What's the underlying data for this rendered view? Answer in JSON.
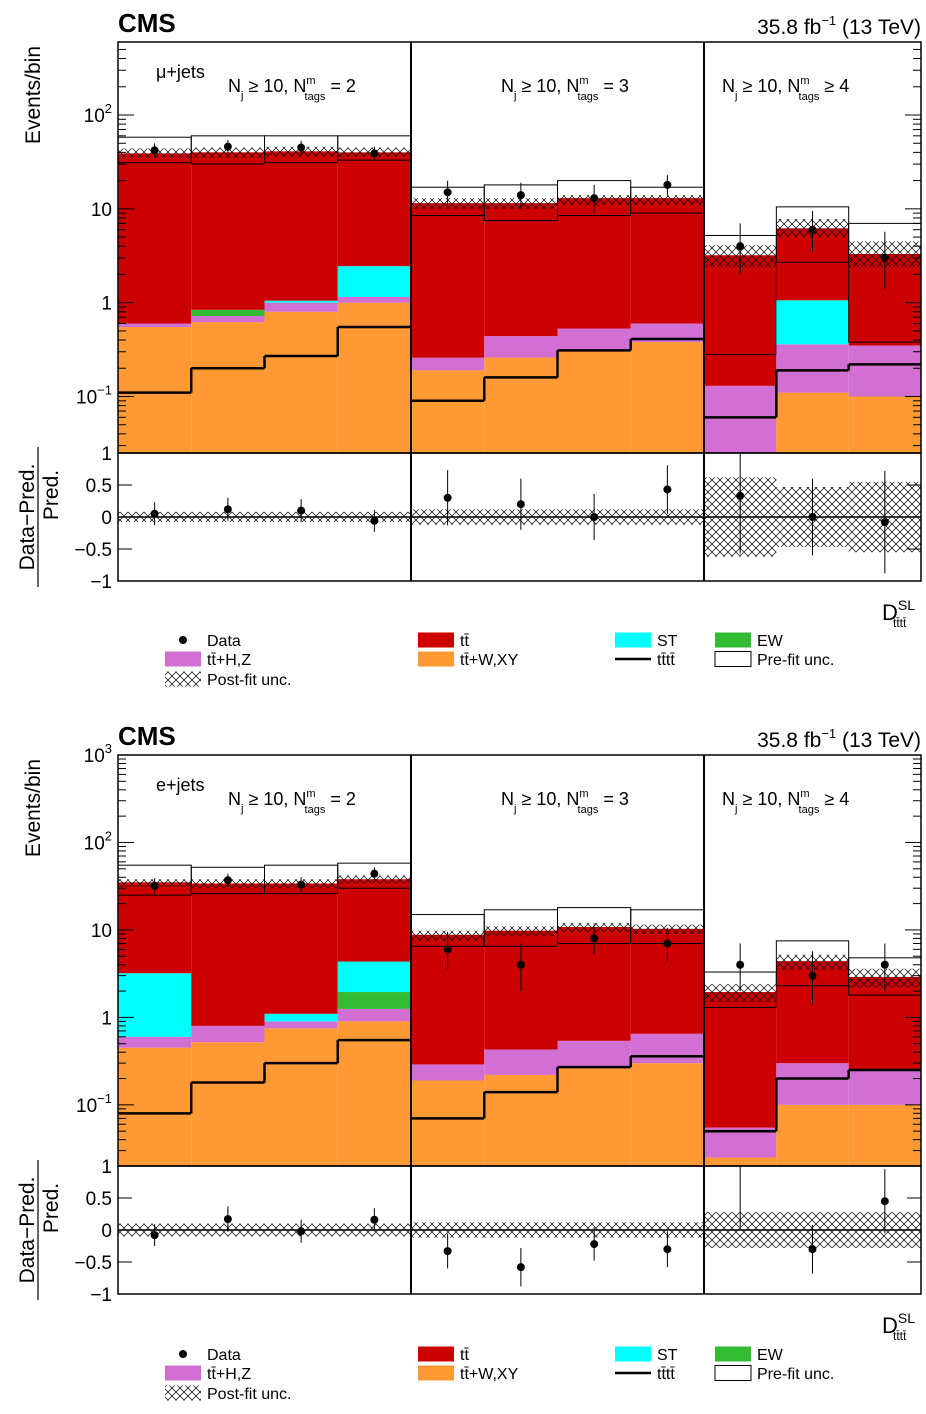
{
  "colors": {
    "tt": "#cc0000",
    "ttHZ": "#d26fd2",
    "ttWXY": "#ff9933",
    "ST": "#00ffff",
    "EW": "#33bb33",
    "tttt": "#000000",
    "data": "#000000"
  },
  "legend": [
    {
      "key": "data",
      "label": "Data"
    },
    {
      "key": "tt",
      "label": "tt̄"
    },
    {
      "key": "ST",
      "label": "ST"
    },
    {
      "key": "EW",
      "label": "EW"
    },
    {
      "key": "ttHZ",
      "label": "tt̄+H,Z"
    },
    {
      "key": "ttWXY",
      "label": "tt̄+W,XY"
    },
    {
      "key": "tttt",
      "label": "tt̄tt̄"
    },
    {
      "key": "prefit",
      "label": "Pre-fit unc."
    },
    {
      "key": "postfit",
      "label": "Post-fit unc."
    }
  ],
  "chart_data": [
    {
      "type": "histogram-stack",
      "experiment": "CMS",
      "lumi_main": "35.8 fb",
      "lumi_exp": "−1",
      "lumi_tail": " (13 TeV)",
      "channel": "μ+jets",
      "ylabel": "Events/bin",
      "ratio_ylabel_top": "Data−Pred.",
      "ratio_ylabel_bottom": "Pred.",
      "xlabel_main": "D",
      "xlabel_sup": "SL",
      "xlabel_sub": "tt̄tt̄",
      "y_scale": "log",
      "ylim": [
        0.025,
        600
      ],
      "y_ticks": [
        {
          "v": 0.1,
          "b": "10",
          "e": "−1"
        },
        {
          "v": 1,
          "b": "1",
          "e": ""
        },
        {
          "v": 10,
          "b": "10",
          "e": ""
        },
        {
          "v": 100,
          "b": "10",
          "e": "2"
        }
      ],
      "ratio_ylim": [
        -1,
        1
      ],
      "ratio_ticks": [
        "1",
        "0.5",
        "0",
        "−0.5",
        "−1"
      ],
      "regions": [
        {
          "label_main": "N",
          "label_sub": "j",
          "label_mid": " ≥ 10, N",
          "label_sup": "m",
          "label_sub2": "tags",
          "label_end": " = 2",
          "bins": [
            {
              "ttWXY": 0.55,
              "ttHZ": 0.05,
              "EW": 0,
              "ST": 0,
              "tt": 38,
              "total": 39,
              "tttt": 0.11,
              "prefit": [
                31,
                58
              ],
              "postfit": [
                35,
                44
              ],
              "data": 42,
              "err": [
                7,
                8
              ],
              "ratio": 0.05,
              "ratio_err": [
                0.18,
                0.18
              ],
              "ratio_unc": 0.08
            },
            {
              "ttWXY": 0.62,
              "ttHZ": 0.1,
              "EW": 0.12,
              "ST": 0,
              "tt": 39,
              "total": 40,
              "tttt": 0.2,
              "prefit": [
                30,
                60
              ],
              "postfit": [
                35,
                45
              ],
              "data": 46,
              "err": [
                7,
                8
              ],
              "ratio": 0.12,
              "ratio_err": [
                0.18,
                0.18
              ],
              "ratio_unc": 0.08
            },
            {
              "ttWXY": 0.8,
              "ttHZ": 0.2,
              "EW": 0,
              "ST": 0.05,
              "tt": 40,
              "total": 41,
              "tttt": 0.27,
              "prefit": [
                31,
                60
              ],
              "postfit": [
                36,
                46
              ],
              "data": 45,
              "err": [
                7,
                8
              ],
              "ratio": 0.1,
              "ratio_err": [
                0.18,
                0.18
              ],
              "ratio_unc": 0.08
            },
            {
              "ttWXY": 1.0,
              "ttHZ": 0.15,
              "EW": 0,
              "ST": 1.3,
              "tt": 38,
              "total": 40,
              "tttt": 0.55,
              "prefit": [
                33,
                60
              ],
              "postfit": [
                36,
                45
              ],
              "data": 39,
              "err": [
                6,
                7
              ],
              "ratio": -0.06,
              "ratio_err": [
                0.17,
                0.17
              ],
              "ratio_unc": 0.08
            }
          ]
        },
        {
          "label_main": "N",
          "label_sub": "j",
          "label_mid": " ≥ 10, N",
          "label_sup": "m",
          "label_sub2": "tags",
          "label_end": " = 3",
          "bins": [
            {
              "ttWXY": 0.19,
              "ttHZ": 0.07,
              "EW": 0,
              "ST": 0,
              "tt": 11,
              "total": 11.5,
              "tttt": 0.09,
              "prefit": [
                8.5,
                17
              ],
              "postfit": [
                10,
                13
              ],
              "data": 15,
              "err": [
                4,
                5
              ],
              "ratio": 0.3,
              "ratio_err": [
                0.43,
                0.43
              ],
              "ratio_unc": 0.12
            },
            {
              "ttWXY": 0.26,
              "ttHZ": 0.18,
              "EW": 0,
              "ST": 0,
              "tt": 11,
              "total": 11.5,
              "tttt": 0.16,
              "prefit": [
                7.5,
                18
              ],
              "postfit": [
                10,
                13
              ],
              "data": 14,
              "err": [
                4,
                5
              ],
              "ratio": 0.2,
              "ratio_err": [
                0.4,
                0.4
              ],
              "ratio_unc": 0.12
            },
            {
              "ttWXY": 0.31,
              "ttHZ": 0.22,
              "EW": 0,
              "ST": 0,
              "tt": 12.5,
              "total": 13,
              "tttt": 0.31,
              "prefit": [
                8.5,
                20
              ],
              "postfit": [
                11,
                14
              ],
              "data": 13,
              "err": [
                4,
                5
              ],
              "ratio": 0,
              "ratio_err": [
                0.36,
                0.36
              ],
              "ratio_unc": 0.12
            },
            {
              "ttWXY": 0.38,
              "ttHZ": 0.22,
              "EW": 0,
              "ST": 0,
              "tt": 12.5,
              "total": 13,
              "tttt": 0.41,
              "prefit": [
                9,
                17
              ],
              "postfit": [
                11,
                14
              ],
              "data": 18,
              "err": [
                4,
                5
              ],
              "ratio": 0.43,
              "ratio_err": [
                0.38,
                0.38
              ],
              "ratio_unc": 0.12
            }
          ]
        },
        {
          "label_main": "N",
          "label_sub": "j",
          "label_mid": " ≥ 10, N",
          "label_sup": "m",
          "label_sub2": "tags",
          "label_end": " ≥ 4",
          "bins": [
            {
              "ttWXY": 0.0,
              "ttHZ": 0.13,
              "EW": 0,
              "ST": 0,
              "tt": 3.1,
              "total": 3.2,
              "tttt": 0.06,
              "prefit": [
                0.28,
                5.2
              ],
              "postfit": [
                2.4,
                4.1
              ],
              "data": 4,
              "err": [
                2,
                3
              ],
              "ratio": 0.33,
              "ratio_err": [
                0.9,
                0.9
              ],
              "ratio_unc": 0.62
            },
            {
              "ttWXY": 0.11,
              "ttHZ": 0.25,
              "EW": 0,
              "ST": 0.7,
              "tt": 6,
              "total": 6.2,
              "tttt": 0.19,
              "prefit": [
                2.7,
                10.5
              ],
              "postfit": [
                5,
                7.8
              ],
              "data": 6,
              "err": [
                2.5,
                3.5
              ],
              "ratio": 0,
              "ratio_err": [
                0.6,
                0.6
              ],
              "ratio_unc": 0.47
            },
            {
              "ttWXY": 0.1,
              "ttHZ": 0.25,
              "EW": 0,
              "ST": 0,
              "tt": 3.2,
              "total": 3.3,
              "tttt": 0.22,
              "prefit": [
                0.38,
                7
              ],
              "postfit": [
                2.4,
                4.5
              ],
              "data": 3,
              "err": [
                1.6,
                2.7
              ],
              "ratio": -0.08,
              "ratio_err": [
                0.8,
                0.8
              ],
              "ratio_unc": 0.55
            }
          ]
        }
      ]
    },
    {
      "type": "histogram-stack",
      "experiment": "CMS",
      "lumi_main": "35.8 fb",
      "lumi_exp": "−1",
      "lumi_tail": " (13 TeV)",
      "channel": "e+jets",
      "ylabel": "Events/bin",
      "ratio_ylabel_top": "Data−Pred.",
      "ratio_ylabel_bottom": "Pred.",
      "xlabel_main": "D",
      "xlabel_sup": "SL",
      "xlabel_sub": "tt̄tt̄",
      "y_scale": "log",
      "ylim": [
        0.02,
        1000
      ],
      "y_ticks": [
        {
          "v": 0.1,
          "b": "10",
          "e": "−1"
        },
        {
          "v": 1,
          "b": "1",
          "e": ""
        },
        {
          "v": 10,
          "b": "10",
          "e": ""
        },
        {
          "v": 100,
          "b": "10",
          "e": "2"
        },
        {
          "v": 1000,
          "b": "10",
          "e": "3"
        }
      ],
      "ratio_ylim": [
        -1,
        1
      ],
      "ratio_ticks": [
        "1",
        "0.5",
        "0",
        "−0.5",
        "−1"
      ],
      "regions": [
        {
          "label_main": "N",
          "label_sub": "j",
          "label_mid": " ≥ 10, N",
          "label_sup": "m",
          "label_sub2": "tags",
          "label_end": " = 2",
          "bins": [
            {
              "ttWXY": 0.45,
              "ttHZ": 0.15,
              "EW": 0,
              "ST": 2.6,
              "tt": 34,
              "total": 35,
              "tttt": 0.08,
              "prefit": [
                25,
                55
              ],
              "postfit": [
                31,
                38
              ],
              "data": 32,
              "err": [
                6,
                7
              ],
              "ratio": -0.08,
              "ratio_err": [
                0.17,
                0.17
              ],
              "ratio_unc": 0.1
            },
            {
              "ttWXY": 0.52,
              "ttHZ": 0.28,
              "EW": 0,
              "ST": 0,
              "tt": 33,
              "total": 34,
              "tttt": 0.18,
              "prefit": [
                26,
                52
              ],
              "postfit": [
                30,
                38
              ],
              "data": 37,
              "err": [
                6,
                7
              ],
              "ratio": 0.17,
              "ratio_err": [
                0.2,
                0.2
              ],
              "ratio_unc": 0.1
            },
            {
              "ttWXY": 0.75,
              "ttHZ": 0.15,
              "EW": 0,
              "ST": 0.2,
              "tt": 33,
              "total": 34,
              "tttt": 0.3,
              "prefit": [
                26,
                55
              ],
              "postfit": [
                30,
                38
              ],
              "data": 33,
              "err": [
                6,
                7
              ],
              "ratio": -0.02,
              "ratio_err": [
                0.18,
                0.18
              ],
              "ratio_unc": 0.1
            },
            {
              "ttWXY": 0.9,
              "ttHZ": 0.35,
              "EW": 0.7,
              "ST": 2.4,
              "tt": 37,
              "total": 38,
              "tttt": 0.55,
              "prefit": [
                30,
                58
              ],
              "postfit": [
                34,
                42
              ],
              "data": 44,
              "err": [
                7,
                8
              ],
              "ratio": 0.16,
              "ratio_err": [
                0.18,
                0.18
              ],
              "ratio_unc": 0.1
            },
            {}
          ]
        },
        {
          "label_main": "N",
          "label_sub": "j",
          "label_mid": " ≥ 10, N",
          "label_sup": "m",
          "label_sub2": "tags",
          "label_end": " = 3",
          "bins": [
            {
              "ttWXY": 0.19,
              "ttHZ": 0.1,
              "EW": 0,
              "ST": 0,
              "tt": 8.5,
              "total": 8.8,
              "tttt": 0.07,
              "prefit": [
                6.5,
                15
              ],
              "postfit": [
                7.5,
                9.8
              ],
              "data": 6,
              "err": [
                2.4,
                3.5
              ],
              "ratio": -0.33,
              "ratio_err": [
                0.27,
                0.27
              ],
              "ratio_unc": 0.12
            },
            {
              "ttWXY": 0.22,
              "ttHZ": 0.21,
              "EW": 0,
              "ST": 0,
              "tt": 9.5,
              "total": 9.8,
              "tttt": 0.14,
              "prefit": [
                6.5,
                17
              ],
              "postfit": [
                8.5,
                11
              ],
              "data": 4,
              "err": [
                2,
                3
              ],
              "ratio": -0.58,
              "ratio_err": [
                0.3,
                0.3
              ],
              "ratio_unc": 0.12
            },
            {
              "ttWXY": 0.27,
              "ttHZ": 0.27,
              "EW": 0,
              "ST": 0,
              "tt": 10.5,
              "total": 10.8,
              "tttt": 0.27,
              "prefit": [
                7,
                18
              ],
              "postfit": [
                9.5,
                12
              ],
              "data": 8,
              "err": [
                2.8,
                3.8
              ],
              "ratio": -0.22,
              "ratio_err": [
                0.26,
                0.26
              ],
              "ratio_unc": 0.12
            },
            {
              "ttWXY": 0.3,
              "ttHZ": 0.35,
              "EW": 0,
              "ST": 0,
              "tt": 10,
              "total": 10.3,
              "tttt": 0.36,
              "prefit": [
                7,
                17
              ],
              "postfit": [
                9,
                11.5
              ],
              "data": 7,
              "err": [
                2.6,
                3.6
              ],
              "ratio": -0.3,
              "ratio_err": [
                0.28,
                0.28
              ],
              "ratio_unc": 0.12
            }
          ]
        },
        {
          "label_main": "N",
          "label_sub": "j",
          "label_mid": " ≥ 10, N",
          "label_sup": "m",
          "label_sub2": "tags",
          "label_end": " ≥ 4",
          "bins": [
            {
              "ttWXY": 0.025,
              "ttHZ": 0.03,
              "EW": 0,
              "ST": 0,
              "tt": 1.9,
              "total": 1.95,
              "tttt": 0.05,
              "prefit": [
                1.3,
                3.3
              ],
              "postfit": [
                1.5,
                2.4
              ],
              "data": 4,
              "err": [
                2,
                3
              ],
              "ratio": 1.0,
              "ratio_err": [
                0.95,
                0.95
              ],
              "ratio_unc": 0.28
            },
            {
              "ttWXY": 0.1,
              "ttHZ": 0.2,
              "EW": 0,
              "ST": 0,
              "tt": 4.2,
              "total": 4.4,
              "tttt": 0.2,
              "prefit": [
                2.3,
                7.5
              ],
              "postfit": [
                3.5,
                5.2
              ],
              "data": 3,
              "err": [
                1.6,
                2.7
              ],
              "ratio": -0.3,
              "ratio_err": [
                0.38,
                0.38
              ],
              "ratio_unc": 0.28
            },
            {
              "ttWXY": 0.1,
              "ttHZ": 0.15,
              "EW": 0,
              "ST": 0,
              "tt": 2.8,
              "total": 2.9,
              "tttt": 0.25,
              "prefit": [
                1.8,
                4.8
              ],
              "postfit": [
                2.2,
                3.6
              ],
              "data": 4,
              "err": [
                2,
                3
              ],
              "ratio": 0.45,
              "ratio_err": [
                0.5,
                0.5
              ],
              "ratio_unc": 0.28
            }
          ]
        }
      ]
    }
  ]
}
